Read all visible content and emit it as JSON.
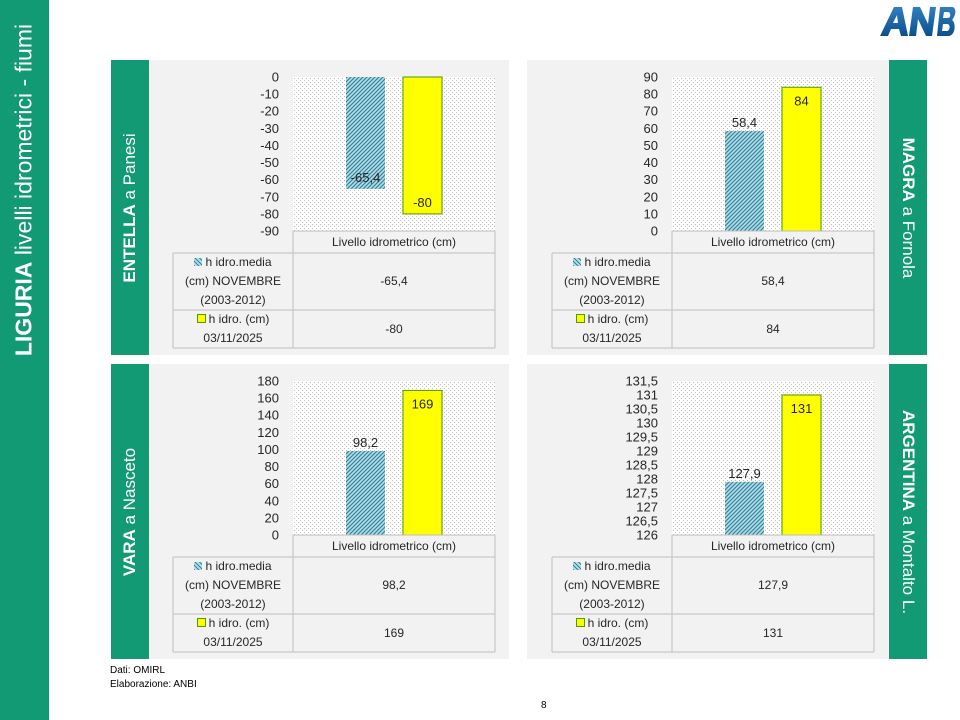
{
  "title": {
    "bold": "LIGURIA",
    "rest": "livelli idrometrici - fiumi"
  },
  "logo_text": "ANBI",
  "colors": {
    "sidebar": "#119a73",
    "hist": "#b7dde8",
    "hist_hatch": "#31859c",
    "current": "#ffff00",
    "current_border": "#4e9a06",
    "plot_bg": "#d9d9d9"
  },
  "source": [
    "Dati: OMIRL",
    "Elaborazione: ANBI"
  ],
  "page_number": "8",
  "chart_data": [
    {
      "type": "bar",
      "station": {
        "river": "ENTELLA",
        "place": "a Panesi"
      },
      "categories": [
        "Livello idrometrico (cm)"
      ],
      "series": [
        {
          "name": "h idro.media (cm) NOVEMBRE (2003-2012)",
          "values": [
            -65.4
          ],
          "label": "-65,4"
        },
        {
          "name": "h idro. (cm) 03/11/2025",
          "values": [
            -80
          ],
          "label": "-80"
        }
      ],
      "ylim": [
        -90,
        0
      ],
      "yticks": [
        "0",
        "-10",
        "-20",
        "-30",
        "-40",
        "-50",
        "-60",
        "-70",
        "-80",
        "-90"
      ],
      "legend_lines": [
        [
          "h idro.media",
          "(cm) NOVEMBRE",
          "(2003-2012)"
        ],
        [
          "h idro. (cm)",
          "03/11/2025"
        ]
      ],
      "table_values": [
        "-65,4",
        "-80"
      ]
    },
    {
      "type": "bar",
      "station": {
        "river": "MAGRA",
        "place": "a Fornola"
      },
      "categories": [
        "Livello idrometrico (cm)"
      ],
      "series": [
        {
          "name": "h idro.media (cm) NOVEMBRE (2003-2012)",
          "values": [
            58.4
          ],
          "label": "58,4"
        },
        {
          "name": "h idro. (cm) 03/11/2025",
          "values": [
            84
          ],
          "label": "84"
        }
      ],
      "ylim": [
        0,
        90
      ],
      "yticks": [
        "90",
        "80",
        "70",
        "60",
        "50",
        "40",
        "30",
        "20",
        "10",
        "0"
      ],
      "legend_lines": [
        [
          "h idro.media",
          "(cm) NOVEMBRE",
          "(2003-2012)"
        ],
        [
          "h idro. (cm)",
          "03/11/2025"
        ]
      ],
      "table_values": [
        "58,4",
        "84"
      ]
    },
    {
      "type": "bar",
      "station": {
        "river": "VARA",
        "place": "a Nasceto"
      },
      "categories": [
        "Livello idrometrico (cm)"
      ],
      "series": [
        {
          "name": "h idro.media (cm) NOVEMBRE (2003-2012)",
          "values": [
            98.2
          ],
          "label": "98,2"
        },
        {
          "name": "h idro. (cm) 03/11/2025",
          "values": [
            169
          ],
          "label": "169"
        }
      ],
      "ylim": [
        0,
        180
      ],
      "yticks": [
        "180",
        "160",
        "140",
        "120",
        "100",
        "80",
        "60",
        "40",
        "20",
        "0"
      ],
      "legend_lines": [
        [
          "h idro.media",
          "(cm) NOVEMBRE",
          "(2003-2012)"
        ],
        [
          "h idro. (cm)",
          "03/11/2025"
        ]
      ],
      "table_values": [
        "98,2",
        "169"
      ]
    },
    {
      "type": "bar",
      "station": {
        "river": "ARGENTINA",
        "place": "a Montalto L."
      },
      "categories": [
        "Livello idrometrico (cm)"
      ],
      "series": [
        {
          "name": "h idro.media (cm) NOVEMBRE (2003-2012)",
          "values": [
            127.9
          ],
          "label": "127,9"
        },
        {
          "name": "h idro. (cm) 03/11/2025",
          "values": [
            131
          ],
          "label": "131"
        }
      ],
      "ylim": [
        126,
        131.5
      ],
      "yticks": [
        "131,5",
        "131",
        "130,5",
        "130",
        "129,5",
        "129",
        "128,5",
        "128",
        "127,5",
        "127",
        "126,5",
        "126"
      ],
      "legend_lines": [
        [
          "h idro.media",
          "(cm) NOVEMBRE",
          "(2003-2012)"
        ],
        [
          "h idro. (cm)",
          "03/11/2025"
        ]
      ],
      "table_values": [
        "127,9",
        "131"
      ]
    }
  ]
}
